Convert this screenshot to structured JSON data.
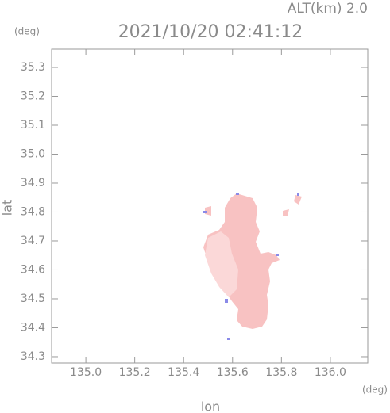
{
  "chart_data": {
    "type": "map",
    "title": "2021/10/20 02:41:12",
    "subtitle": "ALT(km) 2.0",
    "y_unit": "(deg)",
    "x_unit": "(deg)",
    "xlabel": "lon",
    "ylabel": "lat",
    "xlim": [
      134.86,
      136.153
    ],
    "ylim": [
      34.278,
      35.363
    ],
    "xticks": [
      {
        "value": 135,
        "label": "135.0"
      },
      135.2,
      135.4,
      135.6,
      135.8,
      {
        "value": 136,
        "label": "136.0"
      }
    ],
    "yticks": [
      34.3,
      34.4,
      34.5,
      34.6,
      34.7,
      34.8,
      34.9,
      {
        "value": 35,
        "label": "35.0"
      },
      35.1,
      35.2,
      35.3
    ]
  }
}
